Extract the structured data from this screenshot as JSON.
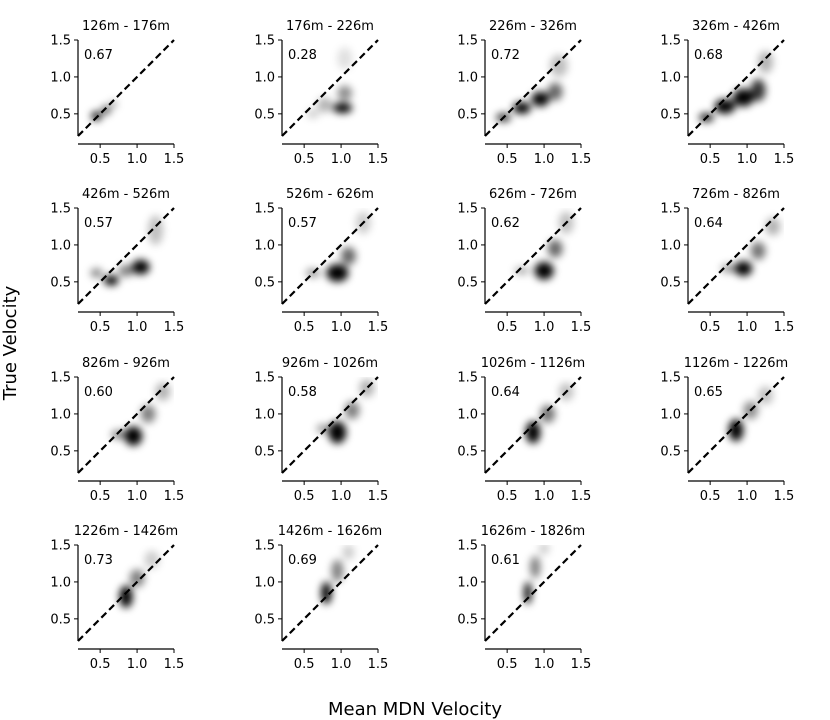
{
  "figure": {
    "xlabel": "Mean MDN Velocity",
    "ylabel": "True Velocity"
  },
  "chart_data": [
    {
      "type": "scatter",
      "title": "126m - 176m",
      "annotation": "0.67",
      "xlim": [
        0.2,
        1.5
      ],
      "ylim": [
        0.2,
        1.5
      ],
      "xticks": [
        "0.5",
        "1.0",
        "1.5"
      ],
      "yticks": [
        "0.5",
        "1.0",
        "1.5"
      ],
      "reference_line": "y = x",
      "density": [
        {
          "x": 0.45,
          "y": 0.47,
          "sx": 0.07,
          "sy": 0.06,
          "w": 1.0
        },
        {
          "x": 0.58,
          "y": 0.55,
          "sx": 0.06,
          "sy": 0.06,
          "w": 0.7
        },
        {
          "x": 0.68,
          "y": 0.63,
          "sx": 0.05,
          "sy": 0.05,
          "w": 0.35
        }
      ]
    },
    {
      "type": "scatter",
      "title": "176m - 226m",
      "annotation": "0.28",
      "xlim": [
        0.2,
        1.5
      ],
      "ylim": [
        0.2,
        1.5
      ],
      "xticks": [
        "0.5",
        "1.0",
        "1.5"
      ],
      "yticks": [
        "0.5",
        "1.0",
        "1.5"
      ],
      "reference_line": "y = x",
      "density": [
        {
          "x": 1.02,
          "y": 0.58,
          "sx": 0.13,
          "sy": 0.07,
          "w": 1.0
        },
        {
          "x": 1.05,
          "y": 0.78,
          "sx": 0.1,
          "sy": 0.1,
          "w": 0.45
        },
        {
          "x": 0.78,
          "y": 0.62,
          "sx": 0.1,
          "sy": 0.1,
          "w": 0.3
        },
        {
          "x": 1.05,
          "y": 1.25,
          "sx": 0.1,
          "sy": 0.15,
          "w": 0.12
        },
        {
          "x": 0.62,
          "y": 0.5,
          "sx": 0.08,
          "sy": 0.06,
          "w": 0.2
        }
      ]
    },
    {
      "type": "scatter",
      "title": "226m - 326m",
      "annotation": "0.72",
      "xlim": [
        0.2,
        1.5
      ],
      "ylim": [
        0.2,
        1.5
      ],
      "xticks": [
        "0.5",
        "1.0",
        "1.5"
      ],
      "yticks": [
        "0.5",
        "1.0",
        "1.5"
      ],
      "reference_line": "y = x",
      "density": [
        {
          "x": 0.45,
          "y": 0.45,
          "sx": 0.1,
          "sy": 0.06,
          "w": 0.8
        },
        {
          "x": 0.7,
          "y": 0.58,
          "sx": 0.12,
          "sy": 0.08,
          "w": 1.0
        },
        {
          "x": 0.95,
          "y": 0.7,
          "sx": 0.12,
          "sy": 0.1,
          "w": 1.0
        },
        {
          "x": 1.15,
          "y": 0.8,
          "sx": 0.1,
          "sy": 0.12,
          "w": 0.6
        },
        {
          "x": 1.2,
          "y": 1.15,
          "sx": 0.12,
          "sy": 0.15,
          "w": 0.25
        }
      ]
    },
    {
      "type": "scatter",
      "title": "326m - 426m",
      "annotation": "0.68",
      "xlim": [
        0.2,
        1.5
      ],
      "ylim": [
        0.2,
        1.5
      ],
      "xticks": [
        "0.5",
        "1.0",
        "1.5"
      ],
      "yticks": [
        "0.5",
        "1.0",
        "1.5"
      ],
      "reference_line": "y = x",
      "density": [
        {
          "x": 0.45,
          "y": 0.45,
          "sx": 0.1,
          "sy": 0.06,
          "w": 0.9
        },
        {
          "x": 0.7,
          "y": 0.6,
          "sx": 0.14,
          "sy": 0.1,
          "w": 1.0
        },
        {
          "x": 0.95,
          "y": 0.72,
          "sx": 0.14,
          "sy": 0.12,
          "w": 1.0
        },
        {
          "x": 1.15,
          "y": 0.82,
          "sx": 0.1,
          "sy": 0.15,
          "w": 0.8
        },
        {
          "x": 1.25,
          "y": 1.2,
          "sx": 0.1,
          "sy": 0.15,
          "w": 0.3
        }
      ]
    },
    {
      "type": "scatter",
      "title": "426m - 526m",
      "annotation": "0.57",
      "xlim": [
        0.2,
        1.5
      ],
      "ylim": [
        0.2,
        1.5
      ],
      "xticks": [
        "0.5",
        "1.0",
        "1.5"
      ],
      "yticks": [
        "0.5",
        "1.0",
        "1.5"
      ],
      "reference_line": "y = x",
      "density": [
        {
          "x": 0.65,
          "y": 0.52,
          "sx": 0.1,
          "sy": 0.07,
          "w": 1.0
        },
        {
          "x": 1.05,
          "y": 0.7,
          "sx": 0.12,
          "sy": 0.1,
          "w": 1.0
        },
        {
          "x": 0.45,
          "y": 0.62,
          "sx": 0.08,
          "sy": 0.06,
          "w": 0.5
        },
        {
          "x": 1.25,
          "y": 1.2,
          "sx": 0.1,
          "sy": 0.2,
          "w": 0.25
        },
        {
          "x": 0.85,
          "y": 0.65,
          "sx": 0.1,
          "sy": 0.08,
          "w": 0.5
        }
      ]
    },
    {
      "type": "scatter",
      "title": "526m - 626m",
      "annotation": "0.57",
      "xlim": [
        0.2,
        1.5
      ],
      "ylim": [
        0.2,
        1.5
      ],
      "xticks": [
        "0.5",
        "1.0",
        "1.5"
      ],
      "yticks": [
        "0.5",
        "1.0",
        "1.5"
      ],
      "reference_line": "y = x",
      "density": [
        {
          "x": 0.95,
          "y": 0.62,
          "sx": 0.15,
          "sy": 0.12,
          "w": 1.0
        },
        {
          "x": 0.62,
          "y": 0.62,
          "sx": 0.1,
          "sy": 0.06,
          "w": 0.4
        },
        {
          "x": 1.1,
          "y": 0.85,
          "sx": 0.1,
          "sy": 0.12,
          "w": 0.6
        },
        {
          "x": 1.3,
          "y": 1.3,
          "sx": 0.1,
          "sy": 0.15,
          "w": 0.2
        }
      ]
    },
    {
      "type": "scatter",
      "title": "626m - 726m",
      "annotation": "0.62",
      "xlim": [
        0.2,
        1.5
      ],
      "ylim": [
        0.2,
        1.5
      ],
      "xticks": [
        "0.5",
        "1.0",
        "1.5"
      ],
      "yticks": [
        "0.5",
        "1.0",
        "1.5"
      ],
      "reference_line": "y = x",
      "density": [
        {
          "x": 1.0,
          "y": 0.65,
          "sx": 0.13,
          "sy": 0.12,
          "w": 1.0
        },
        {
          "x": 0.7,
          "y": 0.65,
          "sx": 0.1,
          "sy": 0.05,
          "w": 0.35
        },
        {
          "x": 1.15,
          "y": 0.95,
          "sx": 0.1,
          "sy": 0.12,
          "w": 0.6
        },
        {
          "x": 1.3,
          "y": 1.3,
          "sx": 0.1,
          "sy": 0.15,
          "w": 0.25
        }
      ]
    },
    {
      "type": "scatter",
      "title": "726m - 826m",
      "annotation": "0.64",
      "xlim": [
        0.2,
        1.5
      ],
      "ylim": [
        0.2,
        1.5
      ],
      "xticks": [
        "0.5",
        "1.0",
        "1.5"
      ],
      "yticks": [
        "0.5",
        "1.0",
        "1.5"
      ],
      "reference_line": "y = x",
      "density": [
        {
          "x": 0.95,
          "y": 0.68,
          "sx": 0.12,
          "sy": 0.1,
          "w": 1.0
        },
        {
          "x": 0.75,
          "y": 0.68,
          "sx": 0.1,
          "sy": 0.06,
          "w": 0.4
        },
        {
          "x": 1.15,
          "y": 0.92,
          "sx": 0.1,
          "sy": 0.12,
          "w": 0.55
        },
        {
          "x": 1.35,
          "y": 1.25,
          "sx": 0.1,
          "sy": 0.12,
          "w": 0.3
        }
      ]
    },
    {
      "type": "scatter",
      "title": "826m - 926m",
      "annotation": "0.60",
      "xlim": [
        0.2,
        1.5
      ],
      "ylim": [
        0.2,
        1.5
      ],
      "xticks": [
        "0.5",
        "1.0",
        "1.5"
      ],
      "yticks": [
        "0.5",
        "1.0",
        "1.5"
      ],
      "reference_line": "y = x",
      "density": [
        {
          "x": 0.95,
          "y": 0.7,
          "sx": 0.12,
          "sy": 0.13,
          "w": 1.0
        },
        {
          "x": 0.75,
          "y": 0.72,
          "sx": 0.1,
          "sy": 0.06,
          "w": 0.5
        },
        {
          "x": 1.15,
          "y": 1.0,
          "sx": 0.1,
          "sy": 0.12,
          "w": 0.5
        },
        {
          "x": 1.35,
          "y": 1.3,
          "sx": 0.1,
          "sy": 0.12,
          "w": 0.3
        }
      ]
    },
    {
      "type": "scatter",
      "title": "926m - 1026m",
      "annotation": "0.58",
      "xlim": [
        0.2,
        1.5
      ],
      "ylim": [
        0.2,
        1.5
      ],
      "xticks": [
        "0.5",
        "1.0",
        "1.5"
      ],
      "yticks": [
        "0.5",
        "1.0",
        "1.5"
      ],
      "reference_line": "y = x",
      "density": [
        {
          "x": 0.95,
          "y": 0.75,
          "sx": 0.12,
          "sy": 0.15,
          "w": 1.0
        },
        {
          "x": 0.75,
          "y": 0.8,
          "sx": 0.08,
          "sy": 0.06,
          "w": 0.4
        },
        {
          "x": 1.15,
          "y": 1.05,
          "sx": 0.1,
          "sy": 0.12,
          "w": 0.5
        },
        {
          "x": 1.35,
          "y": 1.35,
          "sx": 0.1,
          "sy": 0.12,
          "w": 0.3
        }
      ]
    },
    {
      "type": "scatter",
      "title": "1026m - 1126m",
      "annotation": "0.64",
      "xlim": [
        0.2,
        1.5
      ],
      "ylim": [
        0.2,
        1.5
      ],
      "xticks": [
        "0.5",
        "1.0",
        "1.5"
      ],
      "yticks": [
        "0.5",
        "1.0",
        "1.5"
      ],
      "reference_line": "y = x",
      "density": [
        {
          "x": 0.85,
          "y": 0.75,
          "sx": 0.1,
          "sy": 0.15,
          "w": 1.0
        },
        {
          "x": 1.05,
          "y": 1.0,
          "sx": 0.1,
          "sy": 0.12,
          "w": 0.55
        },
        {
          "x": 1.3,
          "y": 1.3,
          "sx": 0.1,
          "sy": 0.12,
          "w": 0.25
        }
      ]
    },
    {
      "type": "scatter",
      "title": "1126m - 1226m",
      "annotation": "0.65",
      "xlim": [
        0.2,
        1.5
      ],
      "ylim": [
        0.2,
        1.5
      ],
      "xticks": [
        "0.5",
        "1.0",
        "1.5"
      ],
      "yticks": [
        "0.5",
        "1.0",
        "1.5"
      ],
      "reference_line": "y = x",
      "density": [
        {
          "x": 0.85,
          "y": 0.78,
          "sx": 0.1,
          "sy": 0.15,
          "w": 1.0
        },
        {
          "x": 1.05,
          "y": 1.05,
          "sx": 0.1,
          "sy": 0.12,
          "w": 0.45
        },
        {
          "x": 1.25,
          "y": 1.25,
          "sx": 0.1,
          "sy": 0.12,
          "w": 0.25
        }
      ]
    },
    {
      "type": "scatter",
      "title": "1226m - 1426m",
      "annotation": "0.73",
      "xlim": [
        0.2,
        1.5
      ],
      "ylim": [
        0.2,
        1.5
      ],
      "xticks": [
        "0.5",
        "1.0",
        "1.5"
      ],
      "yticks": [
        "0.5",
        "1.0",
        "1.5"
      ],
      "reference_line": "y = x",
      "density": [
        {
          "x": 0.85,
          "y": 0.8,
          "sx": 0.09,
          "sy": 0.15,
          "w": 1.0
        },
        {
          "x": 1.0,
          "y": 1.05,
          "sx": 0.1,
          "sy": 0.12,
          "w": 0.5
        },
        {
          "x": 1.2,
          "y": 1.3,
          "sx": 0.1,
          "sy": 0.12,
          "w": 0.2
        }
      ]
    },
    {
      "type": "scatter",
      "title": "1426m - 1626m",
      "annotation": "0.69",
      "xlim": [
        0.2,
        1.5
      ],
      "ylim": [
        0.2,
        1.5
      ],
      "xticks": [
        "0.5",
        "1.0",
        "1.5"
      ],
      "yticks": [
        "0.5",
        "1.0",
        "1.5"
      ],
      "reference_line": "y = x",
      "density": [
        {
          "x": 0.8,
          "y": 0.85,
          "sx": 0.07,
          "sy": 0.15,
          "w": 1.0
        },
        {
          "x": 0.95,
          "y": 1.15,
          "sx": 0.08,
          "sy": 0.15,
          "w": 0.5
        },
        {
          "x": 1.1,
          "y": 1.4,
          "sx": 0.08,
          "sy": 0.1,
          "w": 0.2
        }
      ]
    },
    {
      "type": "scatter",
      "title": "1626m - 1826m",
      "annotation": "0.61",
      "xlim": [
        0.2,
        1.5
      ],
      "ylim": [
        0.2,
        1.5
      ],
      "xticks": [
        "0.5",
        "1.0",
        "1.5"
      ],
      "yticks": [
        "0.5",
        "1.0",
        "1.5"
      ],
      "reference_line": "y = x",
      "density": [
        {
          "x": 0.78,
          "y": 0.85,
          "sx": 0.05,
          "sy": 0.15,
          "w": 1.0
        },
        {
          "x": 0.88,
          "y": 1.2,
          "sx": 0.07,
          "sy": 0.15,
          "w": 0.5
        },
        {
          "x": 1.0,
          "y": 1.45,
          "sx": 0.07,
          "sy": 0.08,
          "w": 0.2
        }
      ]
    }
  ]
}
